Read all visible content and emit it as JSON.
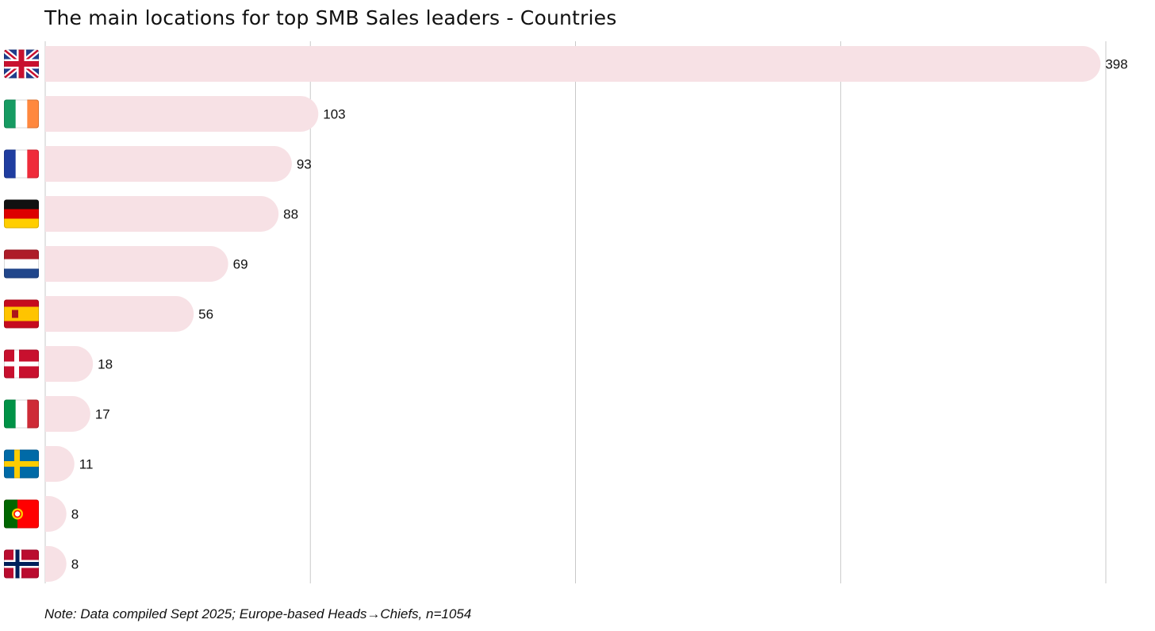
{
  "chart_data": {
    "type": "bar",
    "orientation": "horizontal",
    "title": "The main locations for top SMB Sales leaders - Countries",
    "categories": [
      "United Kingdom",
      "Ireland",
      "France",
      "Germany",
      "Netherlands",
      "Spain",
      "Denmark",
      "Italy",
      "Sweden",
      "Portugal",
      "Norway"
    ],
    "values": [
      398,
      103,
      93,
      88,
      69,
      56,
      18,
      17,
      11,
      8,
      8
    ],
    "value_labels": [
      "398",
      "103",
      "93",
      "88",
      "69",
      "56",
      "18",
      "17",
      "11",
      "8",
      "8"
    ],
    "category_icons": [
      "uk-flag-icon",
      "ireland-flag-icon",
      "france-flag-icon",
      "germany-flag-icon",
      "netherlands-flag-icon",
      "spain-flag-icon",
      "denmark-flag-icon",
      "italy-flag-icon",
      "sweden-flag-icon",
      "portugal-flag-icon",
      "norway-flag-icon"
    ],
    "xlim": [
      0,
      400
    ],
    "gridlines": [
      0,
      100,
      200,
      300,
      400
    ],
    "xlabel": "",
    "ylabel": "",
    "bar_color": "#f7e1e5",
    "grid_color": "#c8c8c8"
  },
  "footer": {
    "note": "Note: Data compiled Sept 2025; Europe-based Heads→Chiefs, n=1054"
  }
}
